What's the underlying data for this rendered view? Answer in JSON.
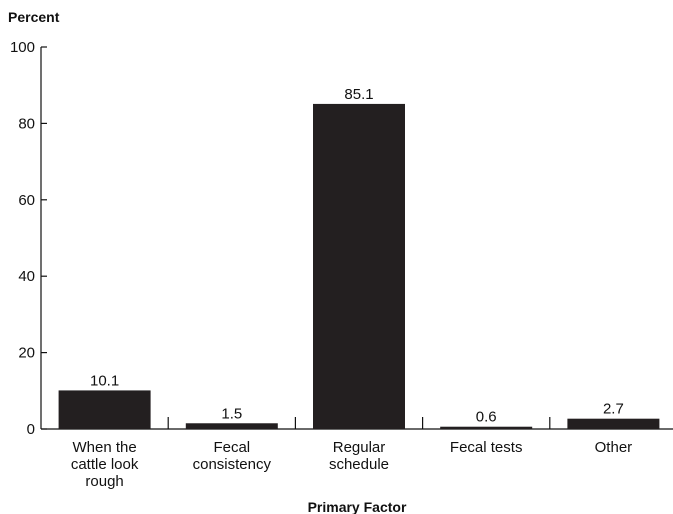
{
  "chart_data": {
    "type": "bar",
    "categories": [
      [
        "When the",
        "cattle look",
        "rough"
      ],
      [
        "Fecal",
        "consistency"
      ],
      [
        "Regular",
        "schedule"
      ],
      [
        "Fecal tests"
      ],
      [
        "Other"
      ]
    ],
    "values": [
      10.1,
      1.5,
      85.1,
      0.6,
      2.7
    ],
    "value_labels": [
      "10.1",
      "1.5",
      "85.1",
      "0.6",
      "2.7"
    ],
    "ylabel": "Percent",
    "xlabel": "Primary Factor",
    "ylim": [
      0,
      100
    ],
    "yticks": [
      0,
      20,
      40,
      60,
      80,
      100
    ],
    "bar_color": "#231f20",
    "grid": false,
    "legend": "none"
  }
}
